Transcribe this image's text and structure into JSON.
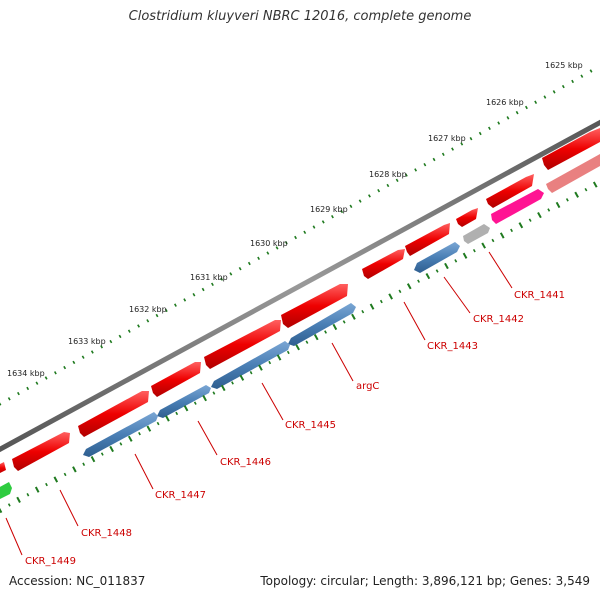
{
  "title": "Clostridium kluyveri NBRC 12016, complete genome",
  "footer": {
    "accession": "Accession: NC_011837",
    "stats": "Topology: circular; Length: 3,896,121 bp; Genes: 3,549"
  },
  "scale_labels": [
    "1625 kbp",
    "1626 kbp",
    "1627 kbp",
    "1628 kbp",
    "1629 kbp",
    "1630 kbp",
    "1631 kbp",
    "1632 kbp",
    "1633 kbp",
    "1634 kbp"
  ],
  "gene_labels": [
    "CKR_1441",
    "CKR_1442",
    "CKR_1443",
    "argC",
    "CKR_1445",
    "CKR_1446",
    "CKR_1447",
    "CKR_1448",
    "CKR_1449"
  ],
  "colors": {
    "forward_cds": "#ee0000",
    "reverse_cds": "#4a7fb5",
    "backbone": "#777777",
    "gc_dots": "#1f7a1f",
    "label": "#cc0000",
    "trna": "#ff1493",
    "other": "#b0b0b0",
    "pale_cds": "#e98080",
    "green_feature": "#2ecc40"
  }
}
